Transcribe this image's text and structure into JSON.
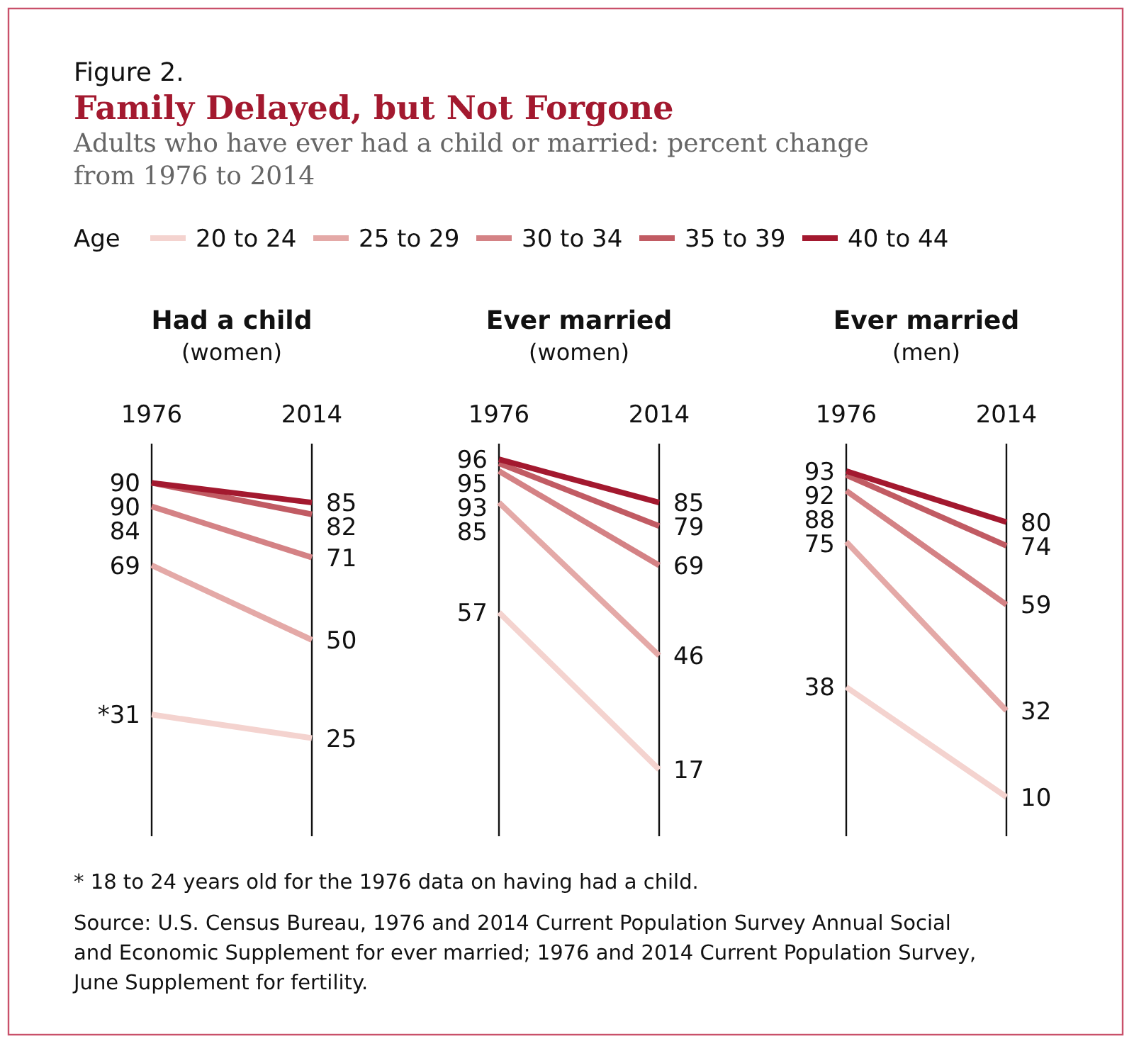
{
  "chart_data": [
    {
      "type": "other",
      "title": "Family Delayed, but Not Forgone",
      "subtitle": "Adults who have ever had a child or married: percent change from 1976 to 2014",
      "annotations": [
        "Figure 2.",
        "* 18 to 24 years old for the 1976 data on having had a child.",
        "Source: U.S. Census Bureau, 1976 and 2014 Current Population Survey Annual Social and Economic Supplement for ever married; 1976 and 2014 Current Population Survey, June Supplement for fertility."
      ]
    },
    {
      "type": "line",
      "title": "Had a child",
      "subtitle": "(women)",
      "categories": [
        "1976",
        "2014"
      ],
      "ylim": [
        0,
        100
      ],
      "tick_labels": "x",
      "grid": "x",
      "marker": "none",
      "legend": "top",
      "legend_title": "Age",
      "series": [
        {
          "name": "20 to 24",
          "color": "#f4d3cf",
          "values": [
            31,
            25
          ],
          "value_labels": [
            "*31",
            "25"
          ]
        },
        {
          "name": "25 to 29",
          "color": "#e4a9a7",
          "values": [
            69,
            50
          ],
          "value_labels": [
            "69",
            "50"
          ]
        },
        {
          "name": "30 to 34",
          "color": "#d48285",
          "values": [
            84,
            71
          ],
          "value_labels": [
            "84",
            "71"
          ]
        },
        {
          "name": "35 to 39",
          "color": "#c15b63",
          "values": [
            90,
            82
          ],
          "value_labels": [
            "90",
            "82"
          ]
        },
        {
          "name": "40 to 44",
          "color": "#a3192f",
          "values": [
            90,
            85
          ],
          "value_labels": [
            "90",
            "85"
          ]
        }
      ]
    },
    {
      "type": "line",
      "title": "Ever married",
      "subtitle": "(women)",
      "categories": [
        "1976",
        "2014"
      ],
      "ylim": [
        0,
        100
      ],
      "tick_labels": "x",
      "grid": "x",
      "marker": "none",
      "data_labels": true,
      "series": [
        {
          "color": "#f4d3cf",
          "values": [
            57,
            17
          ]
        },
        {
          "color": "#e4a9a7",
          "values": [
            85,
            46
          ]
        },
        {
          "color": "#d48285",
          "values": [
            93,
            69
          ]
        },
        {
          "color": "#c15b63",
          "values": [
            95,
            79
          ]
        },
        {
          "color": "#a3192f",
          "values": [
            96,
            85
          ]
        }
      ]
    },
    {
      "type": "line",
      "title": "Ever married",
      "subtitle": "(men)",
      "categories": [
        "1976",
        "2014"
      ],
      "ylim": [
        0,
        100
      ],
      "tick_labels": "x",
      "grid": "x",
      "marker": "none",
      "data_labels": true,
      "series": [
        {
          "color": "#f4d3cf",
          "values": [
            38,
            10
          ]
        },
        {
          "color": "#e4a9a7",
          "values": [
            75,
            32
          ]
        },
        {
          "color": "#d48285",
          "values": [
            88,
            59
          ]
        },
        {
          "color": "#c15b63",
          "values": [
            92,
            74
          ]
        },
        {
          "color": "#a3192f",
          "values": [
            93,
            80
          ]
        }
      ]
    }
  ]
}
